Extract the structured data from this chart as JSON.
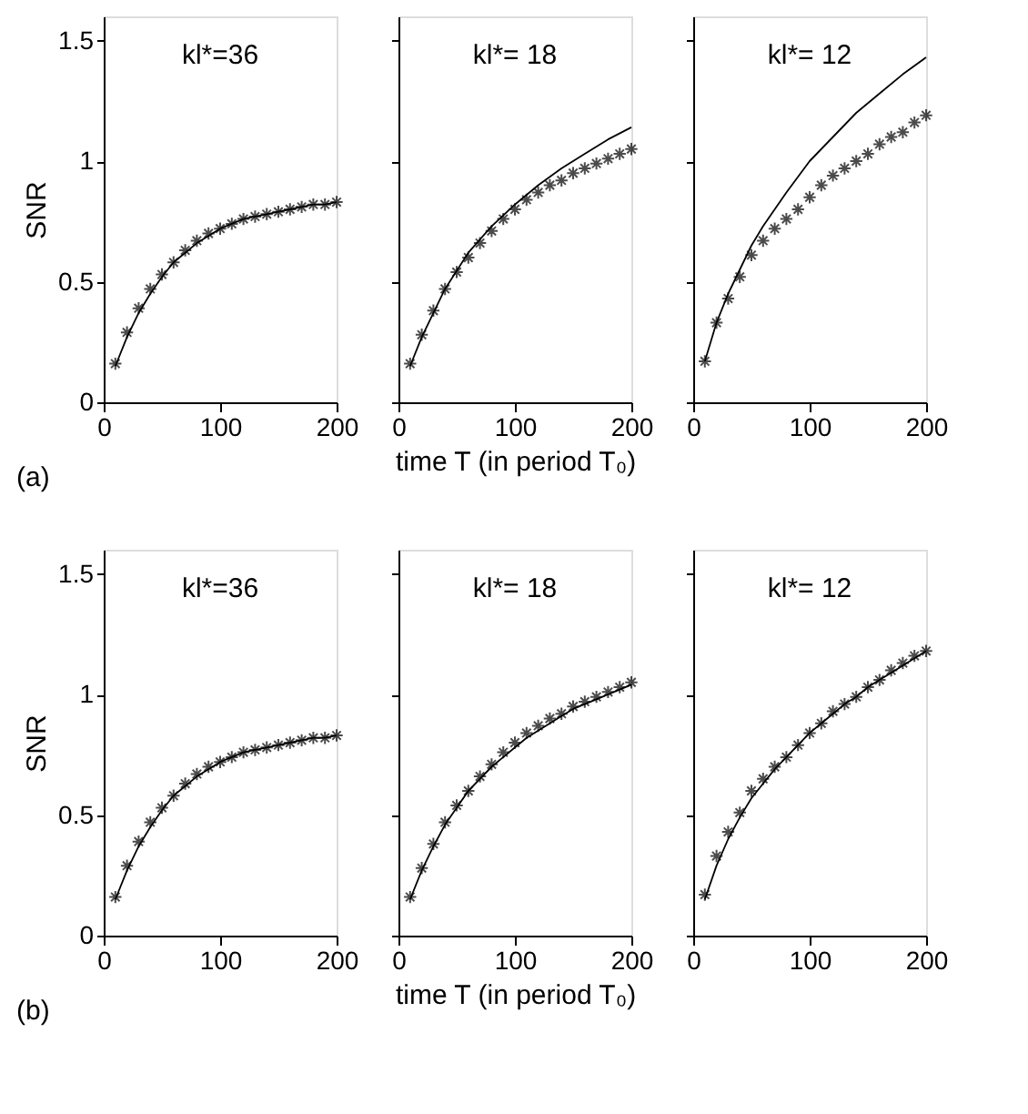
{
  "chart_data": [
    {
      "type": "scatter",
      "title": "kl*=36",
      "ylabel": "SNR",
      "annotations": [
        "(a)"
      ],
      "xlim": [
        0,
        200
      ],
      "ylim": [
        0,
        1.6
      ],
      "xticks": [
        0,
        100,
        200
      ],
      "yticks": [
        0,
        0.5,
        1,
        1.5
      ],
      "grid": false,
      "x": [
        10,
        20,
        30,
        40,
        50,
        60,
        70,
        80,
        90,
        100,
        110,
        120,
        130,
        140,
        150,
        160,
        170,
        180,
        190,
        200
      ],
      "series": [
        {
          "marker": "cross",
          "color": "#000000",
          "values": [
            0.16,
            0.29,
            0.39,
            0.47,
            0.53,
            0.58,
            0.63,
            0.67,
            0.7,
            0.72,
            0.74,
            0.76,
            0.77,
            0.78,
            0.79,
            0.8,
            0.81,
            0.82,
            0.82,
            0.83
          ]
        },
        {
          "type": "line",
          "marker": "none",
          "color": "#000000",
          "line_style": "solid",
          "values": [
            0.15,
            0.27,
            0.37,
            0.45,
            0.52,
            0.58,
            0.62,
            0.66,
            0.69,
            0.72,
            0.74,
            0.76,
            0.77,
            0.78,
            0.79,
            0.8,
            0.81,
            0.82,
            0.82,
            0.83
          ]
        }
      ]
    },
    {
      "type": "scatter",
      "title": "kl*= 18",
      "xlabel": "time T (in period T₀)",
      "tick_labels": "x",
      "xlim": [
        0,
        200
      ],
      "ylim": [
        0,
        1.6
      ],
      "xticks": [
        0,
        100,
        200
      ],
      "yticks": [
        0,
        0.5,
        1,
        1.5
      ],
      "grid": false,
      "x": [
        10,
        20,
        30,
        40,
        50,
        60,
        70,
        80,
        90,
        100,
        110,
        120,
        130,
        140,
        150,
        160,
        170,
        180,
        190,
        200
      ],
      "series": [
        {
          "marker": "cross",
          "color": "#000000",
          "values": [
            0.16,
            0.28,
            0.38,
            0.47,
            0.54,
            0.6,
            0.66,
            0.71,
            0.76,
            0.8,
            0.84,
            0.87,
            0.9,
            0.92,
            0.95,
            0.97,
            0.99,
            1.01,
            1.03,
            1.05
          ]
        },
        {
          "type": "line",
          "marker": "none",
          "color": "#000000",
          "line_style": "solid",
          "x": [
            10,
            20,
            40,
            60,
            80,
            100,
            120,
            140,
            160,
            180,
            200
          ],
          "values": [
            0.15,
            0.27,
            0.47,
            0.62,
            0.73,
            0.82,
            0.9,
            0.97,
            1.03,
            1.09,
            1.14
          ]
        }
      ]
    },
    {
      "type": "scatter",
      "title": "kl*= 12",
      "tick_labels": "x",
      "xlim": [
        0,
        200
      ],
      "ylim": [
        0,
        1.6
      ],
      "xticks": [
        0,
        100,
        200
      ],
      "yticks": [
        0,
        0.5,
        1,
        1.5
      ],
      "grid": false,
      "x": [
        10,
        20,
        30,
        40,
        50,
        60,
        70,
        80,
        90,
        100,
        110,
        120,
        130,
        140,
        150,
        160,
        170,
        180,
        190,
        200
      ],
      "series": [
        {
          "marker": "cross",
          "color": "#000000",
          "values": [
            0.17,
            0.33,
            0.43,
            0.52,
            0.61,
            0.67,
            0.72,
            0.76,
            0.8,
            0.85,
            0.9,
            0.94,
            0.97,
            1.0,
            1.03,
            1.07,
            1.1,
            1.12,
            1.16,
            1.19
          ]
        },
        {
          "type": "line",
          "marker": "none",
          "color": "#000000",
          "line_style": "solid",
          "x": [
            10,
            20,
            30,
            40,
            50,
            60,
            80,
            100,
            120,
            140,
            160,
            180,
            200
          ],
          "values": [
            0.17,
            0.33,
            0.45,
            0.55,
            0.65,
            0.73,
            0.87,
            1.0,
            1.1,
            1.2,
            1.28,
            1.36,
            1.43
          ]
        }
      ]
    },
    {
      "type": "scatter",
      "title": "kl*=36",
      "ylabel": "SNR",
      "annotations": [
        "(b)"
      ],
      "xlim": [
        0,
        200
      ],
      "ylim": [
        0,
        1.6
      ],
      "xticks": [
        0,
        100,
        200
      ],
      "yticks": [
        0,
        0.5,
        1,
        1.5
      ],
      "grid": false,
      "x": [
        10,
        20,
        30,
        40,
        50,
        60,
        70,
        80,
        90,
        100,
        110,
        120,
        130,
        140,
        150,
        160,
        170,
        180,
        190,
        200
      ],
      "series": [
        {
          "marker": "cross",
          "color": "#000000",
          "values": [
            0.16,
            0.29,
            0.39,
            0.47,
            0.53,
            0.58,
            0.63,
            0.67,
            0.7,
            0.72,
            0.74,
            0.76,
            0.77,
            0.78,
            0.79,
            0.8,
            0.81,
            0.82,
            0.82,
            0.83
          ]
        },
        {
          "type": "line",
          "marker": "none",
          "color": "#000000",
          "line_style": "solid",
          "values": [
            0.15,
            0.27,
            0.37,
            0.45,
            0.52,
            0.58,
            0.62,
            0.66,
            0.69,
            0.72,
            0.74,
            0.76,
            0.77,
            0.78,
            0.79,
            0.8,
            0.81,
            0.82,
            0.82,
            0.83
          ]
        }
      ]
    },
    {
      "type": "scatter",
      "title": "kl*= 18",
      "xlabel": "time T (in period T₀)",
      "tick_labels": "x",
      "xlim": [
        0,
        200
      ],
      "ylim": [
        0,
        1.6
      ],
      "xticks": [
        0,
        100,
        200
      ],
      "yticks": [
        0,
        0.5,
        1,
        1.5
      ],
      "grid": false,
      "x": [
        10,
        20,
        30,
        40,
        50,
        60,
        70,
        80,
        90,
        100,
        110,
        120,
        130,
        140,
        150,
        160,
        170,
        180,
        190,
        200
      ],
      "series": [
        {
          "marker": "cross",
          "color": "#000000",
          "values": [
            0.16,
            0.28,
            0.38,
            0.47,
            0.54,
            0.6,
            0.66,
            0.71,
            0.76,
            0.8,
            0.84,
            0.87,
            0.9,
            0.92,
            0.95,
            0.97,
            0.99,
            1.01,
            1.03,
            1.05
          ]
        },
        {
          "type": "line",
          "marker": "none",
          "color": "#000000",
          "line_style": "solid",
          "values": [
            0.15,
            0.27,
            0.37,
            0.46,
            0.53,
            0.6,
            0.65,
            0.7,
            0.74,
            0.78,
            0.82,
            0.85,
            0.88,
            0.91,
            0.94,
            0.96,
            0.98,
            1.0,
            1.02,
            1.04
          ]
        }
      ]
    },
    {
      "type": "scatter",
      "title": "kl*= 12",
      "tick_labels": "x",
      "xlim": [
        0,
        200
      ],
      "ylim": [
        0,
        1.6
      ],
      "xticks": [
        0,
        100,
        200
      ],
      "yticks": [
        0,
        0.5,
        1,
        1.5
      ],
      "grid": false,
      "x": [
        10,
        20,
        30,
        40,
        50,
        60,
        70,
        80,
        90,
        100,
        110,
        120,
        130,
        140,
        150,
        160,
        170,
        180,
        190,
        200
      ],
      "series": [
        {
          "marker": "cross",
          "color": "#000000",
          "values": [
            0.17,
            0.33,
            0.43,
            0.51,
            0.6,
            0.65,
            0.7,
            0.74,
            0.79,
            0.84,
            0.88,
            0.93,
            0.96,
            0.99,
            1.03,
            1.06,
            1.1,
            1.13,
            1.16,
            1.18
          ]
        },
        {
          "type": "line",
          "marker": "none",
          "color": "#000000",
          "line_style": "solid",
          "values": [
            0.15,
            0.29,
            0.4,
            0.49,
            0.57,
            0.63,
            0.69,
            0.74,
            0.79,
            0.84,
            0.88,
            0.92,
            0.96,
            0.99,
            1.03,
            1.06,
            1.09,
            1.12,
            1.15,
            1.18
          ]
        }
      ]
    }
  ]
}
